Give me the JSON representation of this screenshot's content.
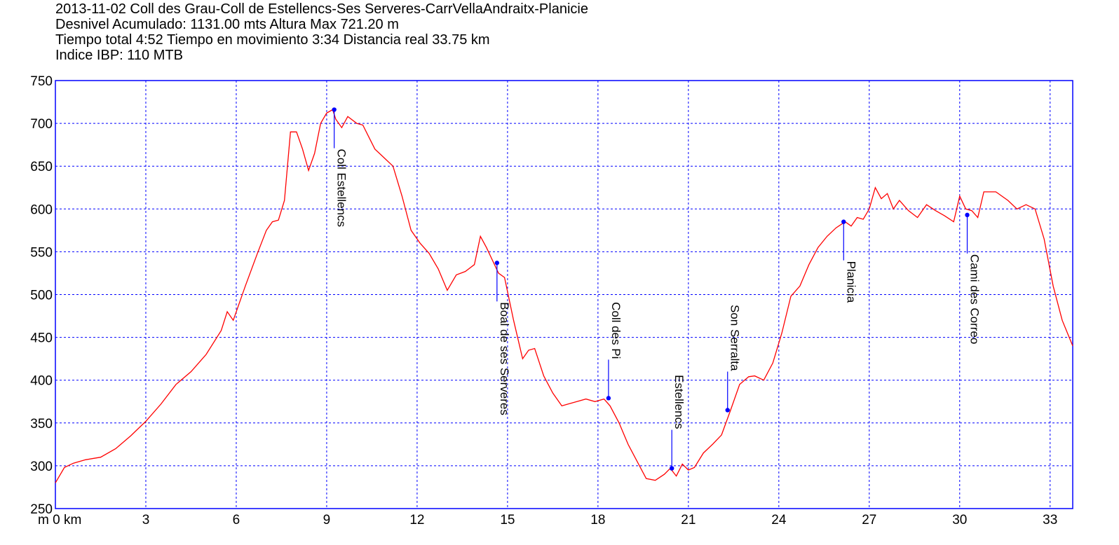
{
  "header": {
    "line1": "2013-11-02 Coll des Grau-Coll de Estellencs-Ses Serveres-CarrVellaAndraitx-Planicie",
    "line2": "Desnivel Acumulado: 1131.00 mts  Altura Max 721.20 m",
    "line3": "Tiempo total 4:52 Tiempo en movimiento 3:34 Distancia real 33.75 km",
    "line4": "Indice IBP: 110 MTB"
  },
  "chart_data": {
    "type": "line",
    "xlim": [
      0,
      33.75
    ],
    "ylim": [
      250,
      750
    ],
    "x_ticks": [
      0,
      3,
      6,
      9,
      12,
      15,
      18,
      21,
      24,
      27,
      30,
      33
    ],
    "x_tick_labels": [
      "m 0 km",
      "3",
      "6",
      "9",
      "12",
      "15",
      "18",
      "21",
      "24",
      "27",
      "30",
      "33"
    ],
    "y_ticks": [
      250,
      300,
      350,
      400,
      450,
      500,
      550,
      600,
      650,
      700,
      750
    ],
    "y_tick_labels": [
      "250",
      "300",
      "350",
      "400",
      "450",
      "500",
      "550",
      "600",
      "650",
      "700",
      "750"
    ],
    "grid": true,
    "colors": {
      "line": "#ff0000",
      "grid": "#0000ff",
      "frame": "#0000ff",
      "waypoint": "#0000ff"
    },
    "series": [
      {
        "x": [
          0,
          0.3,
          0.6,
          1.0,
          1.5,
          2.0,
          2.5,
          3.0,
          3.5,
          4.0,
          4.5,
          5.0,
          5.5,
          5.7,
          5.9,
          6.3,
          6.7,
          7.0,
          7.2,
          7.4,
          7.6,
          7.8,
          8.0,
          8.2,
          8.4,
          8.6,
          8.8,
          9.0,
          9.2,
          9.3,
          9.5,
          9.7,
          10.0,
          10.2,
          10.4,
          10.6,
          10.9,
          11.2,
          11.5,
          11.8,
          12.1,
          12.4,
          12.7,
          13.0,
          13.3,
          13.6,
          13.9,
          14.1,
          14.3,
          14.5,
          14.7,
          14.9,
          15.2,
          15.5,
          15.7,
          15.9,
          16.2,
          16.5,
          16.8,
          17.0,
          17.3,
          17.6,
          17.9,
          18.2,
          18.4,
          18.7,
          19.0,
          19.3,
          19.6,
          19.9,
          20.2,
          20.4,
          20.6,
          20.8,
          21.0,
          21.2,
          21.5,
          21.8,
          22.1,
          22.4,
          22.7,
          23.0,
          23.2,
          23.5,
          23.8,
          24.1,
          24.4,
          24.7,
          25.0,
          25.3,
          25.6,
          25.9,
          26.2,
          26.4,
          26.6,
          26.8,
          27.0,
          27.2,
          27.4,
          27.6,
          27.8,
          28.0,
          28.3,
          28.6,
          28.9,
          29.2,
          29.5,
          29.8,
          30.0,
          30.2,
          30.4,
          30.6,
          30.8,
          31.2,
          31.6,
          31.9,
          32.2,
          32.5,
          32.8,
          33.1,
          33.4,
          33.75
        ],
        "y": [
          280,
          298,
          303,
          307,
          310,
          320,
          335,
          352,
          372,
          395,
          410,
          430,
          458,
          480,
          470,
          510,
          548,
          575,
          585,
          587,
          610,
          690,
          690,
          670,
          645,
          665,
          700,
          712,
          716,
          705,
          695,
          708,
          700,
          698,
          684,
          670,
          660,
          650,
          615,
          575,
          560,
          548,
          530,
          505,
          523,
          527,
          535,
          568,
          555,
          540,
          525,
          520,
          470,
          425,
          435,
          437,
          405,
          385,
          370,
          372,
          375,
          378,
          375,
          378,
          370,
          350,
          325,
          305,
          285,
          283,
          290,
          297,
          288,
          302,
          295,
          298,
          315,
          325,
          336,
          365,
          395,
          404,
          405,
          400,
          420,
          455,
          498,
          510,
          535,
          555,
          568,
          578,
          585,
          580,
          590,
          588,
          600,
          625,
          612,
          618,
          600,
          610,
          598,
          590,
          605,
          598,
          592,
          585,
          615,
          600,
          598,
          590,
          620,
          620,
          610,
          600,
          605,
          600,
          565,
          510,
          470,
          440
        ]
      }
    ],
    "waypoints": [
      {
        "label": "Coll Estellencs",
        "x": 9.25,
        "y": 716,
        "label_side": "below"
      },
      {
        "label": "Boal de ses Serveres",
        "x": 14.65,
        "y": 537,
        "label_side": "below"
      },
      {
        "label": "Coll des Pi",
        "x": 18.35,
        "y": 379,
        "label_side": "above"
      },
      {
        "label": "Estellencs",
        "x": 20.45,
        "y": 297,
        "label_side": "above"
      },
      {
        "label": "Son Serralta",
        "x": 22.3,
        "y": 365,
        "label_side": "above"
      },
      {
        "label": "Planicia",
        "x": 26.15,
        "y": 585,
        "label_side": "below"
      },
      {
        "label": "Cami des Correo",
        "x": 30.25,
        "y": 593,
        "label_side": "below"
      }
    ]
  }
}
